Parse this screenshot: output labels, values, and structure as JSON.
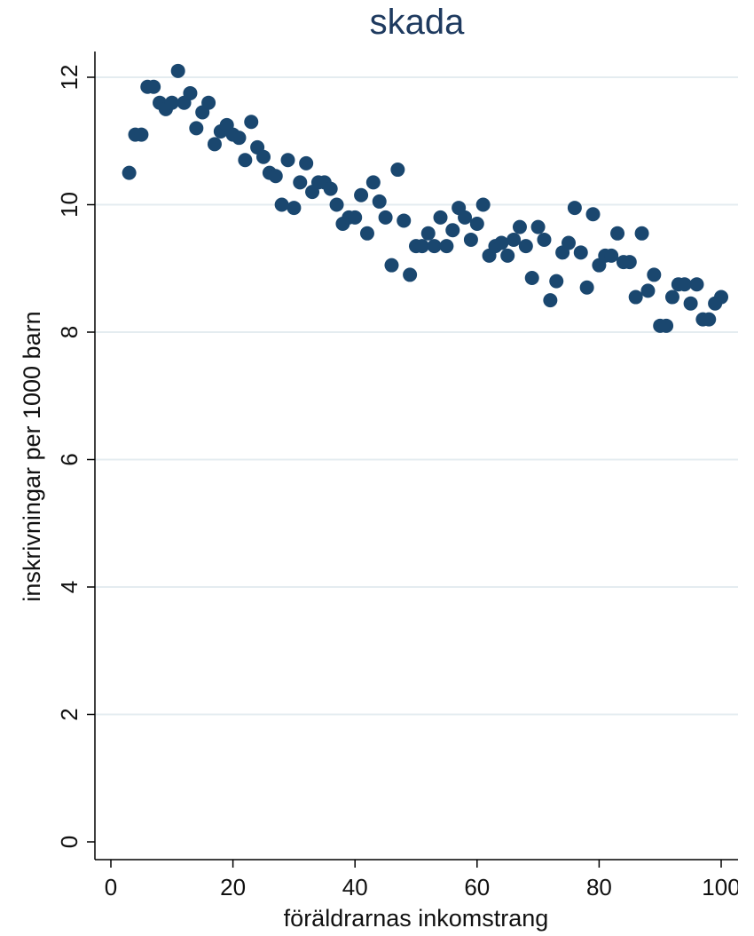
{
  "chart_data": {
    "type": "scatter",
    "title": "skada",
    "xlabel": "föräldrarnas inkomstrang",
    "ylabel": "inskrivningar per 1000 barn",
    "xlim": [
      -2,
      103
    ],
    "ylim": [
      -0.3,
      12.4
    ],
    "xticks": [
      0,
      20,
      40,
      60,
      80,
      100
    ],
    "xtick_labels": [
      "0",
      "20",
      "40",
      "60",
      "80",
      "100"
    ],
    "yticks": [
      0,
      2,
      4,
      6,
      8,
      10,
      12
    ],
    "ytick_labels": [
      "0",
      "2",
      "4",
      "6",
      "8",
      "10",
      "12"
    ],
    "grid": true,
    "marker_color": "#1a476f",
    "x": [
      3,
      4,
      5,
      6,
      7,
      8,
      9,
      10,
      11,
      12,
      13,
      14,
      15,
      16,
      17,
      18,
      19,
      20,
      21,
      22,
      23,
      24,
      25,
      26,
      27,
      28,
      29,
      30,
      31,
      32,
      33,
      34,
      35,
      36,
      37,
      38,
      39,
      40,
      41,
      42,
      43,
      44,
      45,
      46,
      47,
      48,
      49,
      50,
      51,
      52,
      53,
      54,
      55,
      56,
      57,
      58,
      59,
      60,
      61,
      62,
      63,
      64,
      65,
      66,
      67,
      68,
      69,
      70,
      71,
      72,
      73,
      74,
      75,
      76,
      77,
      78,
      79,
      80,
      81,
      82,
      83,
      84,
      85,
      86,
      87,
      88,
      89,
      90,
      91,
      92,
      93,
      94,
      95,
      96,
      97,
      98,
      99,
      100
    ],
    "y": [
      10.5,
      11.1,
      11.1,
      11.85,
      11.85,
      11.6,
      11.5,
      11.6,
      12.1,
      11.6,
      11.75,
      11.2,
      11.45,
      11.6,
      10.95,
      11.15,
      11.25,
      11.1,
      11.05,
      10.7,
      11.3,
      10.9,
      10.75,
      10.5,
      10.45,
      10.0,
      10.7,
      9.95,
      10.35,
      10.65,
      10.2,
      10.35,
      10.35,
      10.25,
      10.0,
      9.7,
      9.8,
      9.8,
      10.15,
      9.55,
      10.35,
      10.05,
      9.8,
      9.05,
      10.55,
      9.75,
      8.9,
      9.35,
      9.35,
      9.55,
      9.35,
      9.8,
      9.35,
      9.6,
      9.95,
      9.8,
      9.45,
      9.7,
      10.0,
      9.2,
      9.35,
      9.4,
      9.2,
      9.45,
      9.65,
      9.35,
      8.85,
      9.65,
      9.45,
      8.5,
      8.8,
      9.25,
      9.4,
      9.95,
      9.25,
      8.7,
      9.85,
      9.05,
      9.2,
      9.2,
      9.55,
      9.1,
      9.1,
      8.55,
      9.55,
      8.65,
      8.9,
      8.1,
      8.1,
      8.55,
      8.75,
      8.75,
      8.45,
      8.75,
      8.2,
      8.2,
      8.45,
      8.55
    ]
  }
}
